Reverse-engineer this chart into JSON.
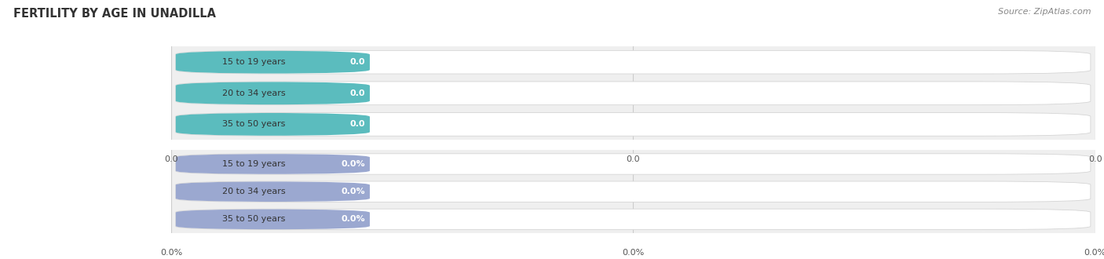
{
  "title": "FERTILITY BY AGE IN UNADILLA",
  "source_text": "Source: ZipAtlas.com",
  "background_color": "#ffffff",
  "row_bg_color": "#efefef",
  "top_section": {
    "categories": [
      "15 to 19 years",
      "20 to 34 years",
      "35 to 50 years"
    ],
    "values": [
      0.0,
      0.0,
      0.0
    ],
    "bar_color": "#5bbcbe",
    "circle_color": "#5bbcbe",
    "tick_labels": [
      "0.0",
      "0.0",
      "0.0"
    ]
  },
  "bottom_section": {
    "categories": [
      "15 to 19 years",
      "20 to 34 years",
      "35 to 50 years"
    ],
    "values": [
      0.0,
      0.0,
      0.0
    ],
    "bar_color": "#9ba8d0",
    "circle_color": "#9ba8d0",
    "tick_labels": [
      "0.0%",
      "0.0%",
      "0.0%"
    ]
  },
  "x_tick_positions": [
    0.0,
    0.5,
    1.0
  ],
  "figsize": [
    14.06,
    3.3
  ],
  "dpi": 100
}
